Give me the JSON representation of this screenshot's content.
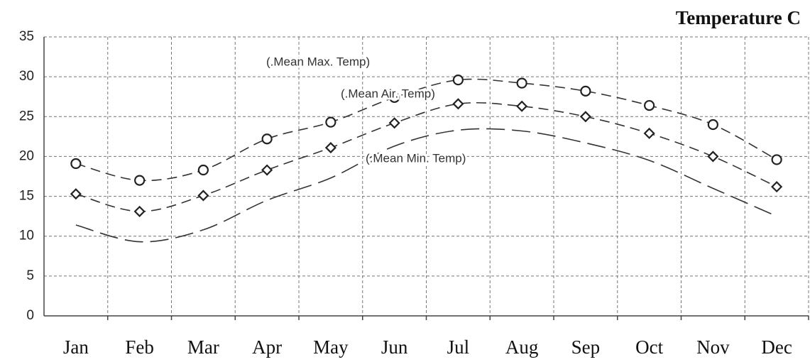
{
  "chart_data": {
    "type": "line",
    "title": "Temperature C",
    "categories": [
      "Jan",
      "Feb",
      "Mar",
      "Apr",
      "May",
      "Jun",
      "Jul",
      "Aug",
      "Sep",
      "Oct",
      "Nov",
      "Dec"
    ],
    "series": [
      {
        "name": "(.Mean Max. Temp)",
        "color": "#333333",
        "marker": "circle",
        "dash": "14 8",
        "values": [
          19.1,
          17.0,
          18.3,
          22.2,
          24.3,
          27.4,
          29.6,
          29.2,
          28.2,
          26.4,
          24.0,
          19.6
        ]
      },
      {
        "name": "(.Mean Air. Temp)",
        "color": "#333333",
        "marker": "diamond",
        "dash": "14 8",
        "values": [
          15.3,
          13.1,
          15.1,
          18.3,
          21.1,
          24.2,
          26.6,
          26.3,
          25.0,
          22.9,
          20.0,
          16.2
        ]
      },
      {
        "name": "(.Mean Min. Temp)",
        "color": "#333333",
        "marker": "none",
        "dash": "26 10",
        "values": [
          11.4,
          9.3,
          10.8,
          14.5,
          17.3,
          21.3,
          23.3,
          23.2,
          21.7,
          19.5,
          16.0,
          12.5
        ]
      }
    ],
    "ylim": [
      0,
      35
    ],
    "yticks": [
      0,
      5,
      10,
      15,
      20,
      25,
      30,
      35
    ],
    "grid": true
  }
}
